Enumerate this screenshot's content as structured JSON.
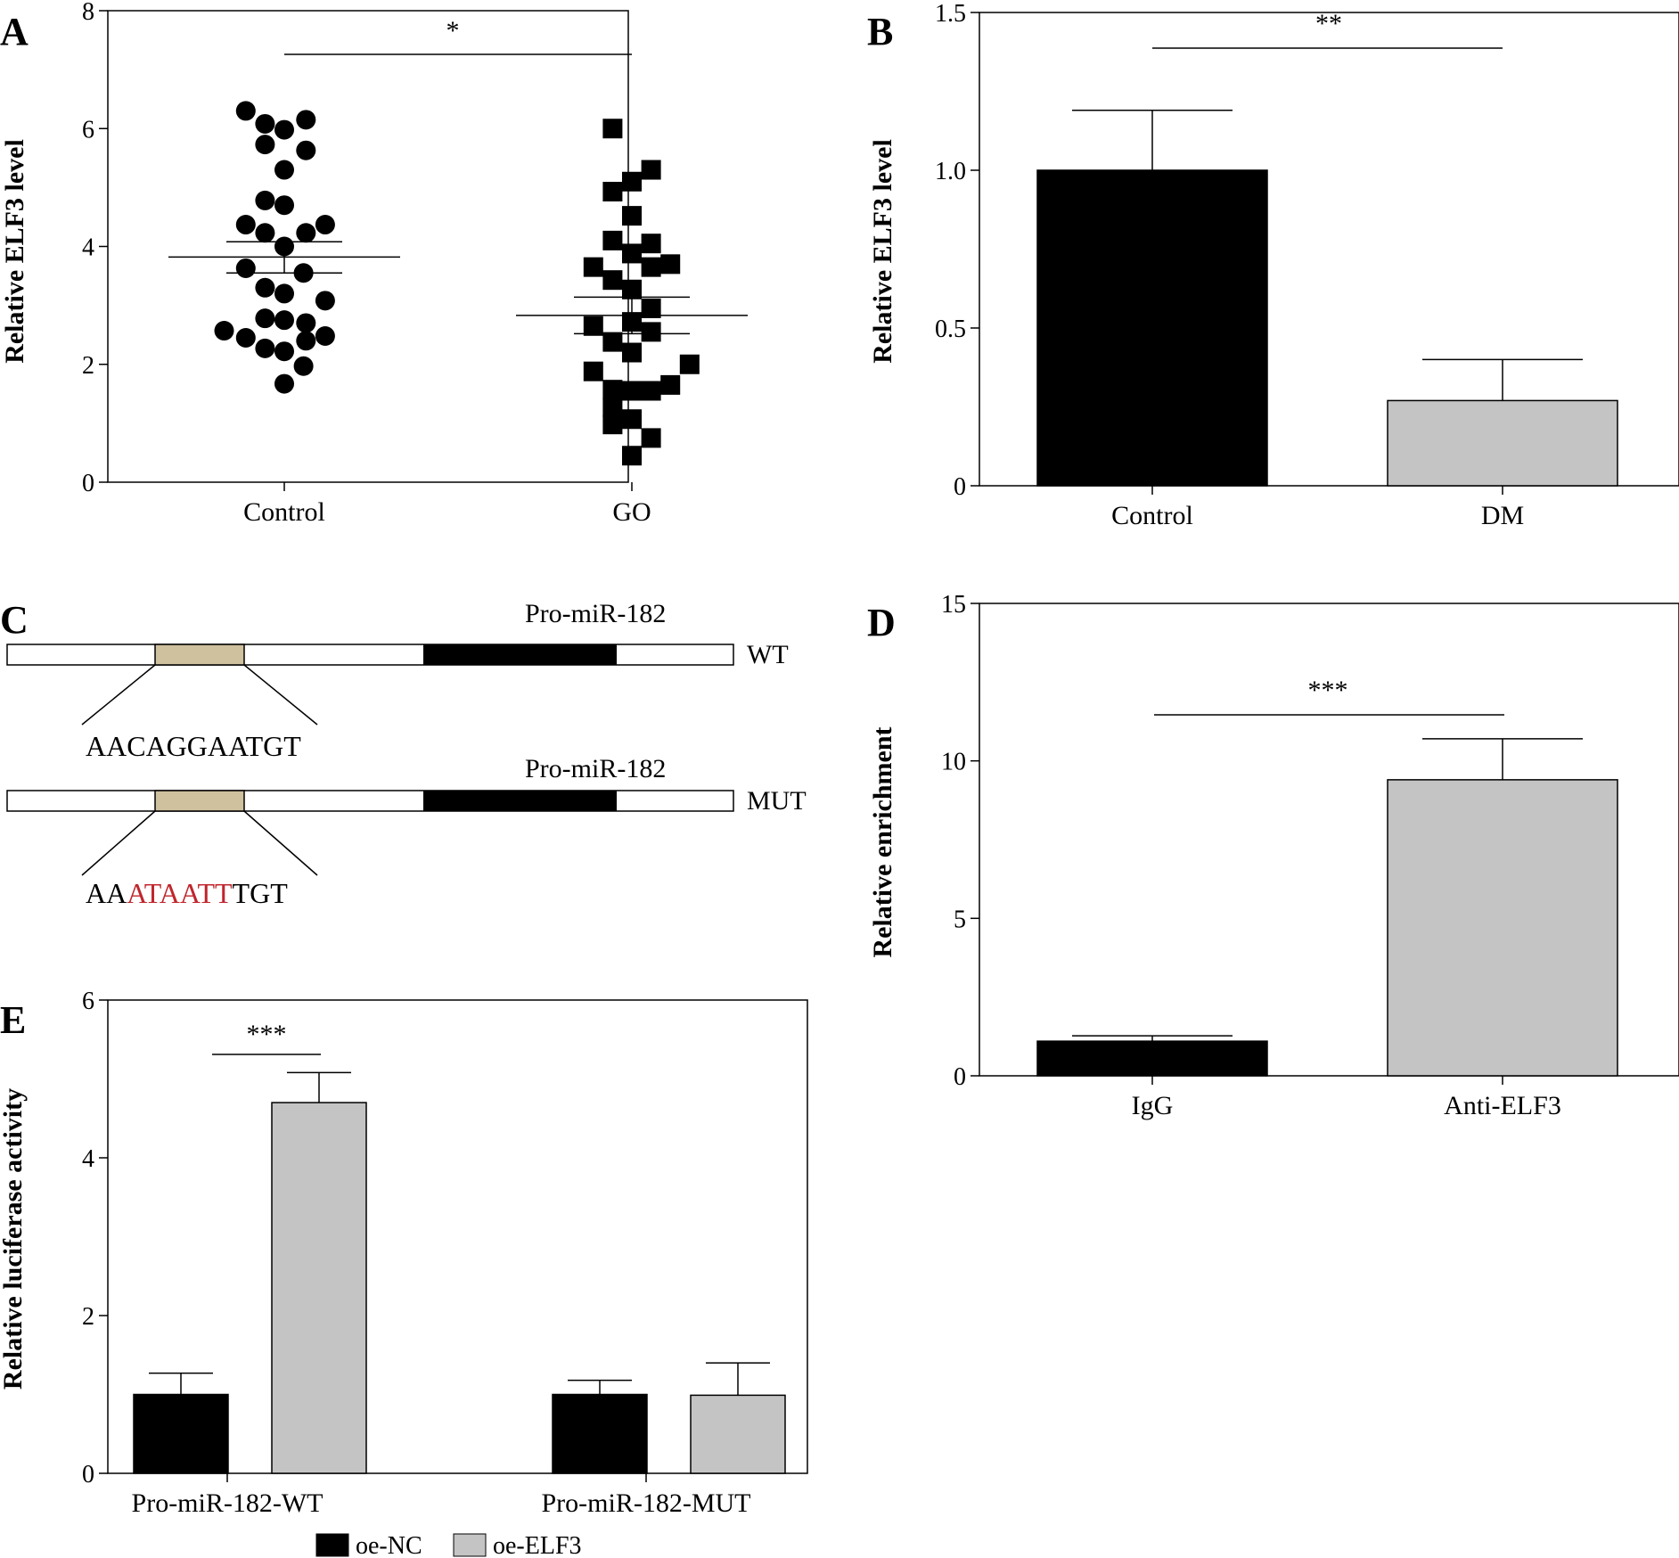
{
  "colors": {
    "black_bar": "#000000",
    "gray_bar": "#c4c4c4",
    "site_box": "#cfc09e",
    "mutation": "#c0262d"
  },
  "chart_data": [
    {
      "panel": "A",
      "type": "scatter",
      "ylabel": "Relative ELF3 level",
      "ylim": [
        0,
        8
      ],
      "yticks": [
        "0",
        "2",
        "4",
        "6",
        "8"
      ],
      "categories": [
        "Control",
        "GO"
      ],
      "significance": "*",
      "groups": [
        {
          "name": "Control",
          "marker": "circle",
          "mean": 3.82,
          "sem_upper": 4.08,
          "sem_lower": 3.55,
          "points": [
            {
              "dx": -0.16,
              "y": 6.3
            },
            {
              "dx": -0.08,
              "y": 6.08
            },
            {
              "dx": 0.0,
              "y": 5.98
            },
            {
              "dx": 0.09,
              "y": 6.15
            },
            {
              "dx": -0.08,
              "y": 5.73
            },
            {
              "dx": 0.09,
              "y": 5.63
            },
            {
              "dx": 0.0,
              "y": 5.3
            },
            {
              "dx": -0.08,
              "y": 4.78
            },
            {
              "dx": 0.0,
              "y": 4.7
            },
            {
              "dx": -0.16,
              "y": 4.37
            },
            {
              "dx": -0.08,
              "y": 4.23
            },
            {
              "dx": 0.0,
              "y": 4.0
            },
            {
              "dx": 0.09,
              "y": 4.23
            },
            {
              "dx": 0.17,
              "y": 4.37
            },
            {
              "dx": -0.16,
              "y": 3.63
            },
            {
              "dx": 0.08,
              "y": 3.55
            },
            {
              "dx": -0.08,
              "y": 3.3
            },
            {
              "dx": 0.0,
              "y": 3.2
            },
            {
              "dx": 0.17,
              "y": 3.08
            },
            {
              "dx": -0.08,
              "y": 2.78
            },
            {
              "dx": 0.0,
              "y": 2.75
            },
            {
              "dx": 0.09,
              "y": 2.7
            },
            {
              "dx": -0.25,
              "y": 2.57
            },
            {
              "dx": -0.16,
              "y": 2.45
            },
            {
              "dx": 0.09,
              "y": 2.4
            },
            {
              "dx": 0.17,
              "y": 2.48
            },
            {
              "dx": -0.08,
              "y": 2.27
            },
            {
              "dx": 0.0,
              "y": 2.22
            },
            {
              "dx": 0.08,
              "y": 1.97
            },
            {
              "dx": 0.0,
              "y": 1.67
            }
          ]
        },
        {
          "name": "GO",
          "marker": "square",
          "mean": 2.83,
          "sem_upper": 3.14,
          "sem_lower": 2.52,
          "points": [
            {
              "dx": -0.08,
              "y": 6.0
            },
            {
              "dx": 0.08,
              "y": 5.3
            },
            {
              "dx": 0.0,
              "y": 5.1
            },
            {
              "dx": -0.08,
              "y": 4.93
            },
            {
              "dx": 0.0,
              "y": 4.52
            },
            {
              "dx": -0.08,
              "y": 4.1
            },
            {
              "dx": 0.08,
              "y": 4.05
            },
            {
              "dx": 0.0,
              "y": 3.88
            },
            {
              "dx": -0.16,
              "y": 3.65
            },
            {
              "dx": 0.08,
              "y": 3.65
            },
            {
              "dx": 0.16,
              "y": 3.7
            },
            {
              "dx": -0.08,
              "y": 3.43
            },
            {
              "dx": 0.0,
              "y": 3.27
            },
            {
              "dx": 0.08,
              "y": 2.95
            },
            {
              "dx": -0.16,
              "y": 2.65
            },
            {
              "dx": 0.0,
              "y": 2.72
            },
            {
              "dx": 0.08,
              "y": 2.55
            },
            {
              "dx": -0.08,
              "y": 2.38
            },
            {
              "dx": 0.0,
              "y": 2.2
            },
            {
              "dx": 0.24,
              "y": 2.0
            },
            {
              "dx": -0.16,
              "y": 1.88
            },
            {
              "dx": -0.08,
              "y": 1.57
            },
            {
              "dx": 0.0,
              "y": 1.55
            },
            {
              "dx": 0.08,
              "y": 1.55
            },
            {
              "dx": 0.16,
              "y": 1.65
            },
            {
              "dx": -0.08,
              "y": 1.27
            },
            {
              "dx": -0.08,
              "y": 0.98
            },
            {
              "dx": 0.0,
              "y": 1.07
            },
            {
              "dx": 0.08,
              "y": 0.75
            },
            {
              "dx": 0.0,
              "y": 0.45
            }
          ]
        }
      ]
    },
    {
      "panel": "B",
      "type": "bar",
      "ylabel": "Relative ELF3 level",
      "ylim": [
        0,
        1.5
      ],
      "yticks": [
        "0",
        "0.5",
        "1.0",
        "1.5"
      ],
      "categories": [
        "Control",
        "DM"
      ],
      "values": [
        1.0,
        0.27
      ],
      "errors": [
        0.19,
        0.13
      ],
      "significance": "**"
    },
    {
      "panel": "D",
      "type": "bar",
      "ylabel": "Relative enrichment",
      "ylim": [
        0,
        15
      ],
      "yticks": [
        "0",
        "5",
        "10",
        "15"
      ],
      "categories": [
        "IgG",
        "Anti-ELF3"
      ],
      "values": [
        1.1,
        9.4
      ],
      "errors": [
        0.17,
        1.3
      ],
      "significance": "***"
    },
    {
      "panel": "E",
      "type": "bar",
      "ylabel": "Relative luciferase activity",
      "ylim": [
        0,
        6
      ],
      "yticks": [
        "0",
        "2",
        "4",
        "6"
      ],
      "categories": [
        "Pro-miR-182-WT",
        "Pro-miR-182-MUT"
      ],
      "series": [
        {
          "name": "oe-NC",
          "values": [
            1.0,
            1.0
          ],
          "errors": [
            0.27,
            0.18
          ]
        },
        {
          "name": "oe-ELF3",
          "values": [
            4.7,
            0.99
          ],
          "errors": [
            0.38,
            0.41
          ]
        }
      ],
      "significance": "***",
      "legend": [
        "oe-NC",
        "oe-ELF3"
      ]
    }
  ],
  "panel_c": {
    "letter": "C",
    "wt": {
      "label": "Pro-miR-182",
      "tag": "WT",
      "sequence": "AACAGGAATGT"
    },
    "mut": {
      "label": "Pro-miR-182",
      "tag": "MUT",
      "seq_prefix": "AA",
      "seq_mutated": "ATAATT",
      "seq_suffix": "TGT"
    }
  }
}
